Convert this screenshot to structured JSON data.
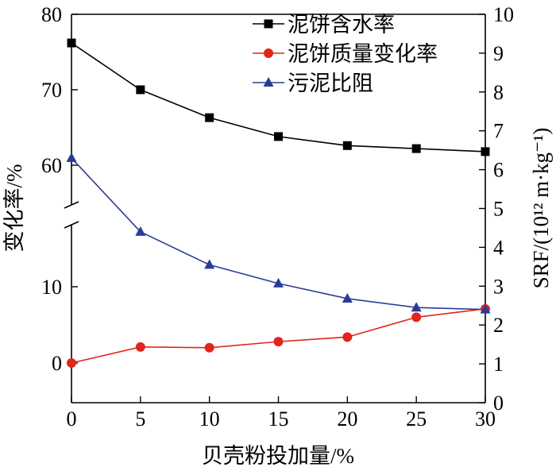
{
  "chart_data": {
    "type": "line",
    "title": "",
    "xlabel": "贝壳粉投加量/%",
    "ylabel": "变化率/%",
    "y2label": "SRF/(10¹² m·kg⁻¹)",
    "x_ticks": [
      "0",
      "5",
      "10",
      "15",
      "20",
      "25",
      "30"
    ],
    "y_left_ticks": [
      "0",
      "10",
      "60",
      "70",
      "80"
    ],
    "y_left_axis_break": [
      16,
      54
    ],
    "y_right_ticks": [
      "0",
      "1",
      "2",
      "3",
      "4",
      "5",
      "6",
      "7",
      "8",
      "9",
      "10"
    ],
    "xlim": [
      0,
      30
    ],
    "ylim_right": [
      0,
      10
    ],
    "x": [
      0,
      5,
      10,
      15,
      20,
      25,
      30
    ],
    "legend_position": "top-right",
    "series": [
      {
        "name": "泥饼含水率",
        "axis": "left",
        "marker": "square",
        "color": "#000000",
        "values": [
          76.2,
          70.0,
          66.3,
          63.8,
          62.6,
          62.2,
          61.8
        ]
      },
      {
        "name": "泥饼质量变化率",
        "axis": "left",
        "marker": "circle",
        "color": "#e0261b",
        "values": [
          0.0,
          2.1,
          2.0,
          2.8,
          3.4,
          6.0,
          7.1
        ]
      },
      {
        "name": "污泥比阻",
        "axis": "right",
        "marker": "triangle",
        "color": "#2b3c97",
        "values": [
          6.3,
          4.4,
          3.55,
          3.07,
          2.68,
          2.45,
          2.4
        ]
      }
    ]
  }
}
